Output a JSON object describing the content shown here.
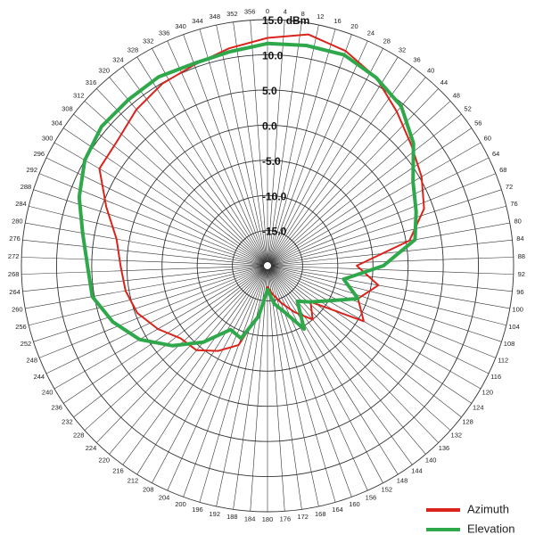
{
  "chart_data": {
    "type": "polar",
    "x": [
      0,
      10,
      20,
      30,
      40,
      50,
      60,
      70,
      80,
      90,
      100,
      110,
      120,
      130,
      140,
      150,
      160,
      170,
      180,
      190,
      200,
      210,
      220,
      230,
      240,
      250,
      260,
      270,
      280,
      290,
      300,
      310,
      320,
      330,
      340,
      350
    ],
    "series": [
      {
        "name": "Azimuth",
        "color": "#d9241c",
        "values": [
          12.4,
          13.4,
          12.5,
          10.9,
          8.6,
          6.7,
          5.3,
          3.7,
          0.5,
          -7.3,
          -4,
          -6.3,
          -4.2,
          -12,
          -10,
          -12.4,
          -14.4,
          -15.9,
          -17,
          -13,
          -8,
          -6,
          -4.3,
          -3.9,
          -2,
          -0.3,
          0.5,
          0.9,
          1.8,
          4.4,
          7.6,
          7.8,
          9,
          9.9,
          10.4,
          11.4
        ]
      },
      {
        "name": "Elevation",
        "color": "#2ea84a",
        "values": [
          11.6,
          11.8,
          11.9,
          10.9,
          9.6,
          7.1,
          3.9,
          2.5,
          1.3,
          -3.5,
          -9,
          -6.3,
          -10,
          -12,
          -13.4,
          -9.6,
          -13,
          -14.5,
          -16.6,
          -12.7,
          -9,
          -9.5,
          -5.8,
          -2.3,
          1,
          3.4,
          5.3,
          5.6,
          6.7,
          8.5,
          10,
          10.8,
          10.8,
          11,
          10.6,
          10.9
        ]
      }
    ],
    "xlim": [
      0,
      360
    ],
    "xticks": [
      0,
      4,
      8,
      12,
      16,
      20,
      24,
      28,
      32,
      36,
      40,
      44,
      48,
      52,
      56,
      60,
      64,
      68,
      72,
      76,
      80,
      84,
      88,
      92,
      96,
      100,
      104,
      108,
      112,
      116,
      120,
      124,
      128,
      132,
      136,
      140,
      144,
      148,
      152,
      156,
      160,
      164,
      168,
      172,
      176,
      180,
      184,
      188,
      192,
      196,
      200,
      204,
      208,
      212,
      216,
      220,
      224,
      228,
      232,
      236,
      240,
      244,
      248,
      252,
      256,
      260,
      264,
      268,
      272,
      276,
      280,
      284,
      288,
      292,
      296,
      300,
      304,
      308,
      312,
      316,
      320,
      324,
      328,
      332,
      336,
      340,
      344,
      348,
      352,
      356
    ],
    "ylim": [
      -20,
      15
    ],
    "yticks": [
      {
        "value": -15,
        "label": "-15.0"
      },
      {
        "value": -10,
        "label": "-10.0"
      },
      {
        "value": -5,
        "label": "-5.0"
      },
      {
        "value": 0,
        "label": "0.0"
      },
      {
        "value": 5,
        "label": "5.0"
      },
      {
        "value": 10,
        "label": "10.0"
      },
      {
        "value": 15,
        "label": "15.0 dBm"
      }
    ],
    "grid": true,
    "legend": "lower right"
  }
}
